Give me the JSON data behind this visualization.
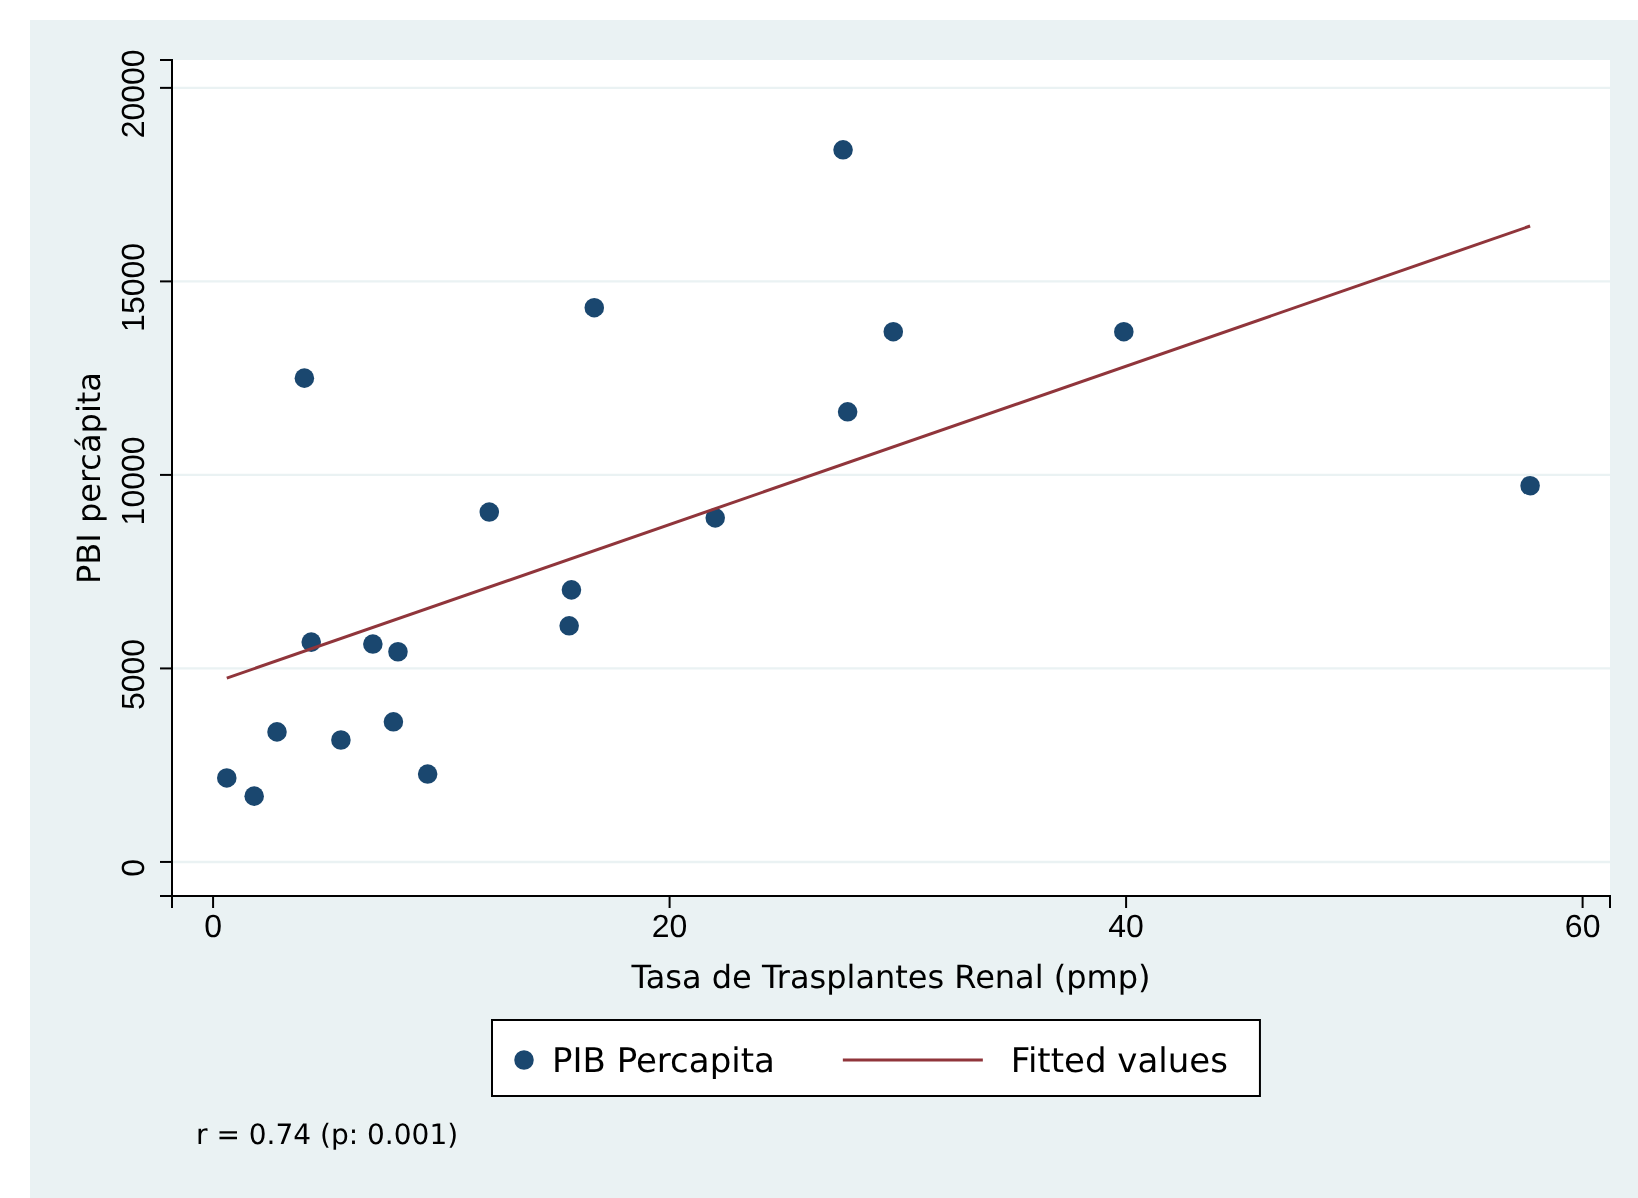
{
  "chart_data": {
    "type": "scatter",
    "xlabel": "Tasa de Trasplantes Renal (pmp)",
    "ylabel": "PBI percápita",
    "xlim": [
      -1.8,
      61.2
    ],
    "xticks": [
      0,
      20,
      40,
      60
    ],
    "ylim": [
      -880,
      20720
    ],
    "yticks": [
      0,
      5000,
      10000,
      15000,
      20000
    ],
    "grid": "y",
    "legend": "bottom",
    "series": [
      {
        "name": "PIB Percapita",
        "marker": "circle",
        "color": "#1a476f",
        "x": [
          0.6,
          1.8,
          2.8,
          4.0,
          4.3,
          5.6,
          7.0,
          8.1,
          7.9,
          9.4,
          12.1,
          15.7,
          15.6,
          16.7,
          22.0,
          27.6,
          27.8,
          29.8,
          39.9,
          57.7
        ],
        "values": [
          2170,
          1700,
          3360,
          12500,
          5680,
          3150,
          5630,
          5430,
          3620,
          2270,
          9040,
          7030,
          6100,
          14320,
          8890,
          18400,
          11630,
          13700,
          13700,
          9720
        ]
      },
      {
        "name": "Fitted values",
        "type": "line",
        "color": "#90353b",
        "x": [
          0.6,
          57.7
        ],
        "values": [
          4750,
          16430
        ]
      }
    ],
    "annotations": [
      "r = 0.74 (p: 0.001)"
    ]
  }
}
